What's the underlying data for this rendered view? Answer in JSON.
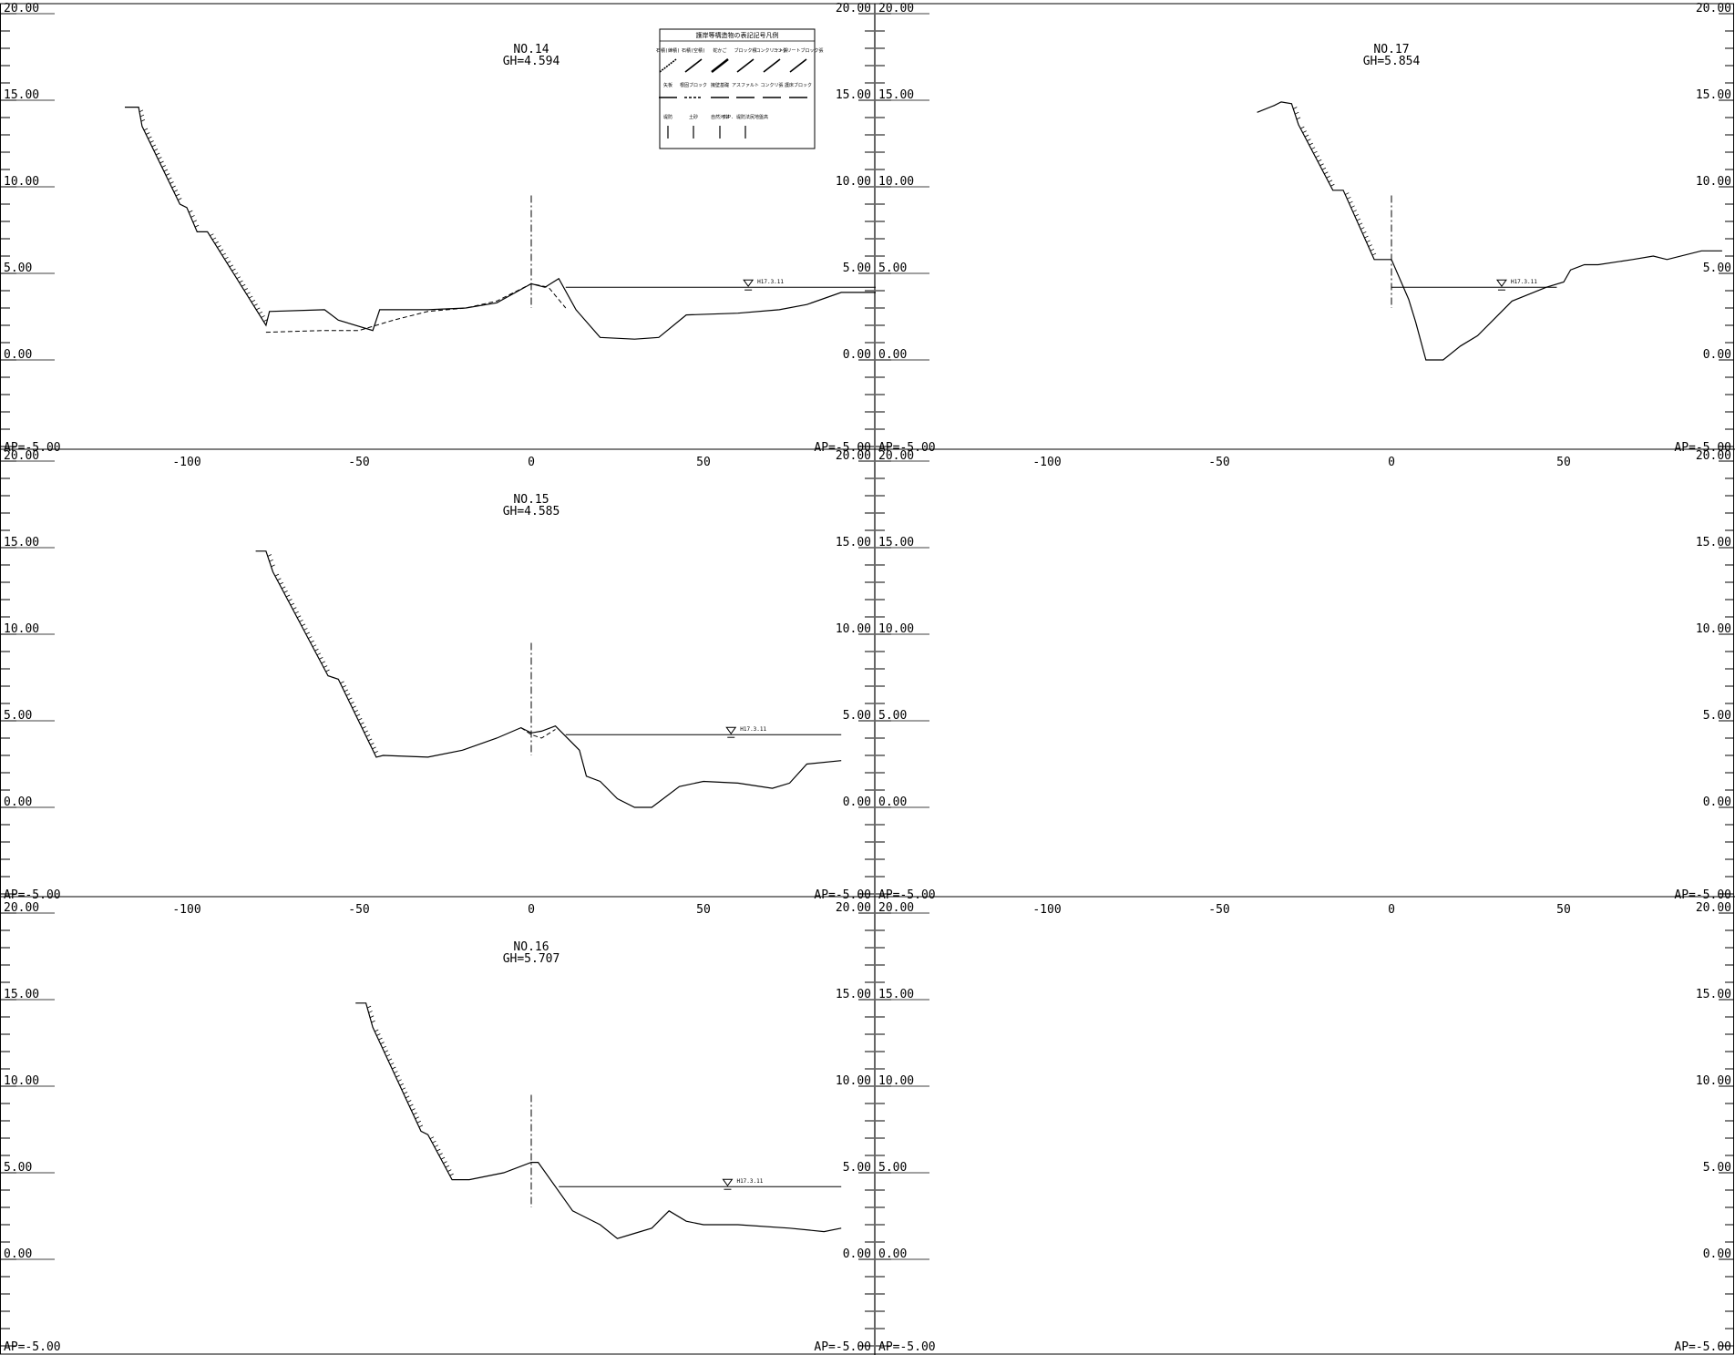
{
  "axis": {
    "y_ticks": [
      "20.00",
      "15.00",
      "10.00",
      "5.00",
      "0.00"
    ],
    "y_min_label": "AP=-5.00",
    "x_ticks": [
      "-100",
      "-50",
      "0",
      "50"
    ]
  },
  "legend": {
    "title": "護岸等構造物の表記記号凡例",
    "items": [
      "石積(練積)",
      "石積(空積)",
      "蛇かご",
      "ブロック積",
      "コンクリート張",
      "コンクリートブロック張",
      "矢板",
      "根固ブロック",
      "擁壁基礎",
      "アスファルト",
      "コンクリ張",
      "護床ブロック",
      "堤防",
      "土砂",
      "自然河岸",
      "T.P. 堤防法尻地盤高"
    ]
  },
  "panels": [
    {
      "id": "no14",
      "title": "NO.14",
      "gh": "GH=4.594",
      "water_label": "H17.3.11",
      "chart_data": {
        "type": "line",
        "xlim": [
          -150,
          100
        ],
        "ylim": [
          -5,
          20
        ],
        "series": [
          {
            "x": [
              -118,
              -114,
              -113,
              -102,
              -100,
              -97,
              -94,
              -77,
              -76,
              -60,
              -56,
              -46,
              -44,
              -30,
              -19,
              -10,
              0,
              4,
              8,
              13,
              20,
              30,
              37,
              45,
              60,
              72,
              80,
              90,
              100
            ],
            "y": [
              14.6,
              14.6,
              13.5,
              9.0,
              8.8,
              7.4,
              7.4,
              2.0,
              2.8,
              2.9,
              2.3,
              1.7,
              2.9,
              2.9,
              3.0,
              3.3,
              4.4,
              4.2,
              4.7,
              2.9,
              1.3,
              1.2,
              1.3,
              2.6,
              2.7,
              2.9,
              3.2,
              3.9,
              3.9
            ]
          },
          {
            "x": [
              -77,
              -60,
              -50,
              -40,
              -30,
              -19,
              -10,
              0,
              5,
              10
            ],
            "y": [
              1.6,
              1.7,
              1.7,
              2.3,
              2.8,
              3.0,
              3.4,
              4.4,
              4.2,
              3.0
            ]
          }
        ],
        "water_level": {
          "y": 4.2,
          "x": [
            10,
            100
          ]
        }
      }
    },
    {
      "id": "no15",
      "title": "NO.15",
      "gh": "GH=4.585",
      "water_label": "H17.3.11",
      "chart_data": {
        "type": "line",
        "xlim": [
          -150,
          100
        ],
        "ylim": [
          -5,
          20
        ],
        "series": [
          {
            "x": [
              -80,
              -77,
              -75,
              -59,
              -56,
              -45,
              -43,
              -30,
              -20,
              -10,
              -3,
              0,
              3,
              7,
              14,
              16,
              20,
              25,
              30,
              35,
              43,
              50,
              60,
              70,
              75,
              80,
              90
            ],
            "y": [
              14.8,
              14.8,
              13.6,
              7.6,
              7.4,
              2.9,
              3.0,
              2.9,
              3.3,
              4.0,
              4.6,
              4.3,
              4.4,
              4.7,
              3.3,
              1.8,
              1.5,
              0.5,
              0.0,
              0.0,
              1.2,
              1.5,
              1.4,
              1.1,
              1.4,
              2.5,
              2.7
            ]
          },
          {
            "x": [
              -3,
              0,
              3,
              7
            ],
            "y": [
              4.6,
              4.2,
              4.0,
              4.5
            ]
          }
        ],
        "water_level": {
          "y": 4.2,
          "x": [
            10,
            90
          ]
        }
      }
    },
    {
      "id": "no16",
      "title": "NO.16",
      "gh": "GH=5.707",
      "water_label": "H17.3.11",
      "chart_data": {
        "type": "line",
        "xlim": [
          -150,
          100
        ],
        "ylim": [
          -5,
          20
        ],
        "series": [
          {
            "x": [
              -51,
              -48,
              -46,
              -32,
              -30,
              -23,
              -18,
              -8,
              0,
              2,
              12,
              20,
              25,
              30,
              35,
              40,
              45,
              50,
              60,
              75,
              85,
              90
            ],
            "y": [
              14.8,
              14.8,
              13.4,
              7.4,
              7.2,
              4.6,
              4.6,
              5.0,
              5.6,
              5.6,
              2.8,
              2.0,
              1.2,
              1.5,
              1.8,
              2.8,
              2.2,
              2.0,
              2.0,
              1.8,
              1.6,
              1.8
            ]
          }
        ],
        "water_level": {
          "y": 4.2,
          "x": [
            8,
            90
          ]
        }
      }
    },
    {
      "id": "no17",
      "title": "NO.17",
      "gh": "GH=5.854",
      "water_label": "H17.3.11",
      "chart_data": {
        "type": "line",
        "xlim": [
          -150,
          100
        ],
        "ylim": [
          -5,
          20
        ],
        "series": [
          {
            "x": [
              -39,
              -34,
              -32,
              -29,
              -27,
              -17,
              -14,
              -5,
              0,
              5,
              7,
              10,
              15,
              20,
              25,
              30,
              35,
              45,
              50,
              52,
              56,
              60,
              70,
              76,
              80,
              90,
              96
            ],
            "y": [
              14.3,
              14.7,
              14.9,
              14.8,
              13.6,
              9.8,
              9.8,
              5.8,
              5.8,
              3.5,
              2.2,
              0.0,
              0.0,
              0.8,
              1.4,
              2.4,
              3.4,
              4.2,
              4.5,
              5.2,
              5.5,
              5.5,
              5.8,
              6.0,
              5.8,
              6.3,
              6.3
            ]
          }
        ],
        "water_level": {
          "y": 4.2,
          "x": [
            0,
            48
          ]
        }
      }
    }
  ]
}
